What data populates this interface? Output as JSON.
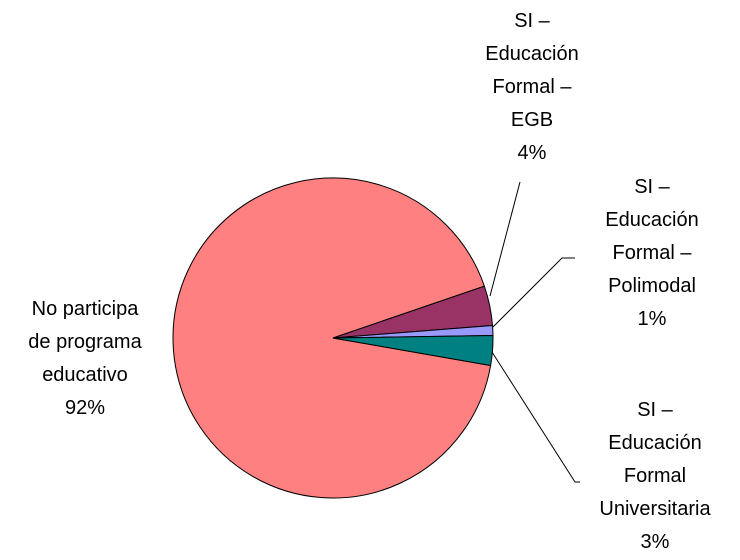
{
  "chart_data": {
    "type": "pie",
    "categories": [
      "No participa\nde programa\neducativo",
      "SI –\nEducación\nFormal –\nEGB",
      "SI –\nEducación\nFormal –\nPolimodal",
      "SI –\nEducación\nFormal\nUniversitaria"
    ],
    "values": [
      92,
      4,
      1,
      3
    ],
    "value_labels": [
      "92%",
      "4%",
      "1%",
      "3%"
    ],
    "colors": [
      "#ff8080",
      "#993366",
      "#9999ff",
      "#008080"
    ]
  }
}
